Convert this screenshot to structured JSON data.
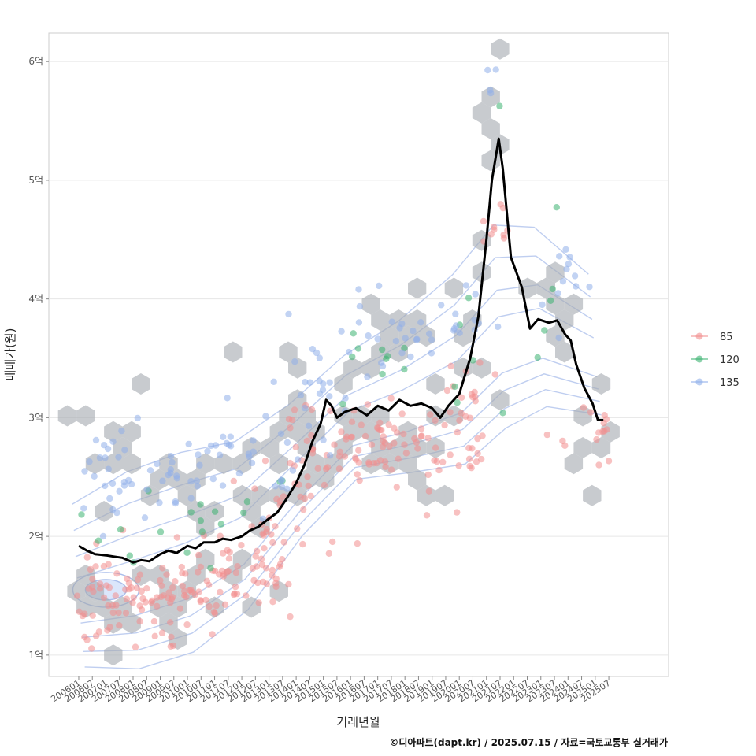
{
  "chart_data": {
    "type": "scatter",
    "xlabel": "거래년월",
    "ylabel": "매매가(원)",
    "caption": "©디아파트(dapt.kr) / 2025.07.15 / 자료=국토교통부 실거래가",
    "x_tick_labels": [
      "200601",
      "200607",
      "200701",
      "200707",
      "200801",
      "200807",
      "200901",
      "200907",
      "201001",
      "201007",
      "201101",
      "201107",
      "201201",
      "201207",
      "201301",
      "201307",
      "201401",
      "201407",
      "201501",
      "201507",
      "201601",
      "201607",
      "201701",
      "201707",
      "201801",
      "201807",
      "201901",
      "201907",
      "202001",
      "202007",
      "202101",
      "202107",
      "202201",
      "202207",
      "202301",
      "202307",
      "202401",
      "202407",
      "202501",
      "202507"
    ],
    "y_tick_labels": [
      "1억",
      "2억",
      "3억",
      "4억",
      "5억",
      "6억"
    ],
    "y_ticks": [
      1,
      2,
      3,
      4,
      5,
      6
    ],
    "ylim": [
      0.82,
      6.24
    ],
    "xlim": [
      2004.9,
      2027.7
    ],
    "grid": true,
    "legend_position": "right",
    "colors": {
      "85": "#F28E8E",
      "120": "#3CB371",
      "135": "#8FAFEA",
      "trend": "#000000",
      "hex": "#A6ABB1",
      "contour": "#A9BDEB"
    },
    "series": [
      {
        "name": "85",
        "color": "#F28E8E",
        "clusters": [
          {
            "x": 2007.3,
            "y": 1.5,
            "sx": 1.2,
            "sy": 0.18,
            "n": 70
          },
          {
            "x": 2009.5,
            "y": 1.5,
            "sx": 1.0,
            "sy": 0.15,
            "n": 40
          },
          {
            "x": 2011.5,
            "y": 1.65,
            "sx": 1.0,
            "sy": 0.18,
            "n": 40
          },
          {
            "x": 2013.0,
            "y": 1.9,
            "sx": 0.7,
            "sy": 0.25,
            "n": 35
          },
          {
            "x": 2014.3,
            "y": 2.5,
            "sx": 0.6,
            "sy": 0.3,
            "n": 30
          },
          {
            "x": 2016.5,
            "y": 2.75,
            "sx": 1.1,
            "sy": 0.2,
            "n": 45
          },
          {
            "x": 2018.8,
            "y": 2.75,
            "sx": 1.0,
            "sy": 0.18,
            "n": 35
          },
          {
            "x": 2020.4,
            "y": 2.95,
            "sx": 0.5,
            "sy": 0.35,
            "n": 25
          },
          {
            "x": 2021.3,
            "y": 4.6,
            "sx": 0.3,
            "sy": 0.15,
            "n": 10
          },
          {
            "x": 2024.7,
            "y": 2.85,
            "sx": 0.6,
            "sy": 0.15,
            "n": 15
          }
        ]
      },
      {
        "name": "120",
        "color": "#3CB371",
        "clusters": [
          {
            "x": 2007.5,
            "y": 2.0,
            "sx": 1.5,
            "sy": 0.35,
            "n": 8
          },
          {
            "x": 2009.8,
            "y": 2.15,
            "sx": 0.9,
            "sy": 0.12,
            "n": 6
          },
          {
            "x": 2012.5,
            "y": 2.3,
            "sx": 1.0,
            "sy": 0.3,
            "n": 6
          },
          {
            "x": 2016.5,
            "y": 3.5,
            "sx": 1.2,
            "sy": 0.2,
            "n": 10
          },
          {
            "x": 2020.3,
            "y": 3.6,
            "sx": 0.6,
            "sy": 0.35,
            "n": 6
          },
          {
            "x": 2021.5,
            "y": 5.65,
            "sx": 0.05,
            "sy": 0.03,
            "n": 1
          },
          {
            "x": 2023.6,
            "y": 4.8,
            "sx": 0.05,
            "sy": 0.03,
            "n": 1
          },
          {
            "x": 2023.4,
            "y": 3.9,
            "sx": 0.4,
            "sy": 0.15,
            "n": 4
          }
        ]
      },
      {
        "name": "135",
        "color": "#8FAFEA",
        "clusters": [
          {
            "x": 2007.3,
            "y": 2.5,
            "sx": 1.0,
            "sy": 0.25,
            "n": 35
          },
          {
            "x": 2009.8,
            "y": 2.55,
            "sx": 0.9,
            "sy": 0.15,
            "n": 20
          },
          {
            "x": 2012.4,
            "y": 2.6,
            "sx": 1.0,
            "sy": 0.2,
            "n": 25
          },
          {
            "x": 2014.8,
            "y": 3.35,
            "sx": 0.7,
            "sy": 0.3,
            "n": 25
          },
          {
            "x": 2017.4,
            "y": 3.75,
            "sx": 1.2,
            "sy": 0.15,
            "n": 25
          },
          {
            "x": 2020.2,
            "y": 3.9,
            "sx": 0.6,
            "sy": 0.2,
            "n": 10
          },
          {
            "x": 2021.2,
            "y": 5.85,
            "sx": 0.1,
            "sy": 0.1,
            "n": 4
          },
          {
            "x": 2023.8,
            "y": 4.1,
            "sx": 0.5,
            "sy": 0.2,
            "n": 12
          }
        ]
      }
    ],
    "trend": [
      [
        2006.0,
        1.92
      ],
      [
        2006.3,
        1.88
      ],
      [
        2006.6,
        1.85
      ],
      [
        2007.0,
        1.84
      ],
      [
        2007.3,
        1.83
      ],
      [
        2007.6,
        1.82
      ],
      [
        2008.0,
        1.78
      ],
      [
        2008.3,
        1.8
      ],
      [
        2008.6,
        1.79
      ],
      [
        2009.0,
        1.85
      ],
      [
        2009.3,
        1.88
      ],
      [
        2009.6,
        1.86
      ],
      [
        2010.0,
        1.92
      ],
      [
        2010.3,
        1.9
      ],
      [
        2010.6,
        1.95
      ],
      [
        2011.0,
        1.95
      ],
      [
        2011.3,
        1.98
      ],
      [
        2011.6,
        1.97
      ],
      [
        2012.0,
        2.0
      ],
      [
        2012.3,
        2.05
      ],
      [
        2012.6,
        2.08
      ],
      [
        2013.0,
        2.15
      ],
      [
        2013.3,
        2.2
      ],
      [
        2013.6,
        2.3
      ],
      [
        2014.0,
        2.45
      ],
      [
        2014.3,
        2.6
      ],
      [
        2014.6,
        2.8
      ],
      [
        2014.9,
        2.95
      ],
      [
        2015.1,
        3.15
      ],
      [
        2015.3,
        3.1
      ],
      [
        2015.5,
        3.0
      ],
      [
        2015.8,
        3.05
      ],
      [
        2016.2,
        3.08
      ],
      [
        2016.6,
        3.02
      ],
      [
        2017.0,
        3.1
      ],
      [
        2017.4,
        3.06
      ],
      [
        2017.8,
        3.15
      ],
      [
        2018.2,
        3.1
      ],
      [
        2018.6,
        3.12
      ],
      [
        2019.0,
        3.08
      ],
      [
        2019.3,
        3.0
      ],
      [
        2019.6,
        3.1
      ],
      [
        2020.0,
        3.2
      ],
      [
        2020.4,
        3.5
      ],
      [
        2020.7,
        3.85
      ],
      [
        2021.0,
        4.5
      ],
      [
        2021.2,
        5.0
      ],
      [
        2021.45,
        5.35
      ],
      [
        2021.6,
        5.1
      ],
      [
        2021.9,
        4.35
      ],
      [
        2022.3,
        4.1
      ],
      [
        2022.6,
        3.75
      ],
      [
        2022.9,
        3.83
      ],
      [
        2023.3,
        3.8
      ],
      [
        2023.6,
        3.82
      ],
      [
        2023.9,
        3.7
      ],
      [
        2024.1,
        3.65
      ],
      [
        2024.3,
        3.45
      ],
      [
        2024.6,
        3.25
      ],
      [
        2024.9,
        3.12
      ],
      [
        2025.1,
        2.98
      ],
      [
        2025.3,
        2.98
      ]
    ],
    "hex_regions": [
      {
        "x": 2007.3,
        "y": 1.55,
        "sx": 1.1,
        "sy": 0.25,
        "n": 18
      },
      {
        "x": 2007.3,
        "y": 2.55,
        "sx": 1.0,
        "sy": 0.3,
        "n": 14
      },
      {
        "x": 2009.7,
        "y": 1.6,
        "sx": 0.9,
        "sy": 0.25,
        "n": 10
      },
      {
        "x": 2009.8,
        "y": 2.45,
        "sx": 0.9,
        "sy": 0.25,
        "n": 10
      },
      {
        "x": 2011.8,
        "y": 1.75,
        "sx": 0.9,
        "sy": 0.25,
        "n": 10
      },
      {
        "x": 2012.4,
        "y": 2.55,
        "sx": 1.0,
        "sy": 0.3,
        "n": 10
      },
      {
        "x": 2014.0,
        "y": 2.8,
        "sx": 0.8,
        "sy": 0.5,
        "n": 16
      },
      {
        "x": 2016.5,
        "y": 2.9,
        "sx": 1.1,
        "sy": 0.35,
        "n": 16
      },
      {
        "x": 2017.4,
        "y": 3.7,
        "sx": 1.2,
        "sy": 0.2,
        "n": 12
      },
      {
        "x": 2019.0,
        "y": 2.8,
        "sx": 1.0,
        "sy": 0.3,
        "n": 10
      },
      {
        "x": 2020.4,
        "y": 3.6,
        "sx": 0.5,
        "sy": 0.45,
        "n": 10
      },
      {
        "x": 2021.2,
        "y": 5.3,
        "sx": 0.2,
        "sy": 0.5,
        "n": 8
      },
      {
        "x": 2023.8,
        "y": 3.95,
        "sx": 0.5,
        "sy": 0.25,
        "n": 10
      },
      {
        "x": 2024.8,
        "y": 2.8,
        "sx": 0.5,
        "sy": 0.25,
        "n": 8
      }
    ]
  }
}
